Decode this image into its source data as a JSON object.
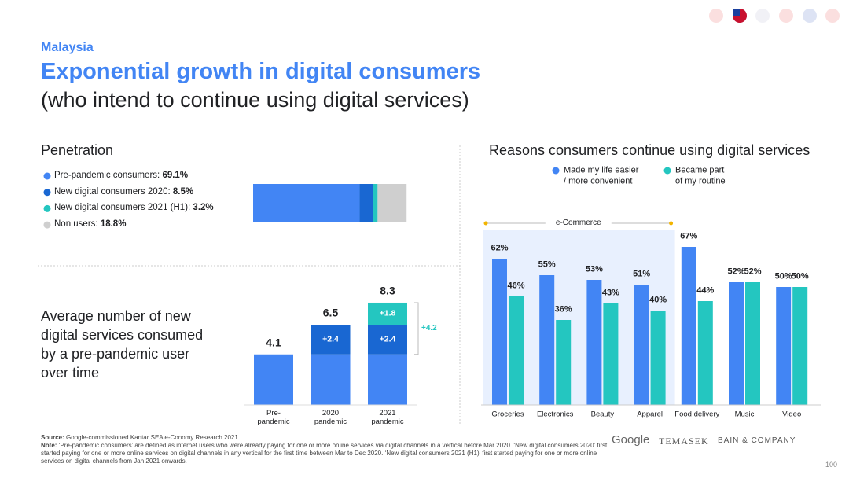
{
  "header": {
    "country": "Malaysia",
    "title": "Exponential growth in digital consumers",
    "subtitle": "(who intend to continue using digital services)"
  },
  "chart_data": [
    {
      "type": "stacked_hbar",
      "title": "Penetration",
      "xlim": [
        0,
        100
      ],
      "series": [
        {
          "name": "Pre-pandemic consumers:",
          "color": "#4285f4",
          "values": [
            69.1
          ],
          "value_labels": [
            "69.1%"
          ]
        },
        {
          "name": "New digital consumers 2020:",
          "color": "#1967d2",
          "values": [
            8.5
          ],
          "value_labels": [
            "8.5%"
          ]
        },
        {
          "name": "New digital consumers 2021 (H1):",
          "color": "#24c6c0",
          "values": [
            3.2
          ],
          "value_labels": [
            "3.2%"
          ]
        },
        {
          "name": "Non users:",
          "color": "#cfcfcf",
          "values": [
            18.8
          ],
          "value_labels": [
            "18.8%"
          ]
        }
      ]
    },
    {
      "type": "stacked_bar",
      "title": "Average number of new\ndigital services consumed\nby a pre-pandemic user\nover time",
      "categories": [
        "Pre-\npandemic",
        "2020\npandemic",
        "2021\npandemic"
      ],
      "ylim": [
        0,
        9
      ],
      "series": [
        {
          "color": "#4285f4",
          "values": [
            4.1,
            4.1,
            4.1
          ]
        },
        {
          "color": "#1967d2",
          "values": [
            null,
            2.4,
            2.4
          ],
          "value_labels": [
            null,
            "+2.4",
            "+2.4"
          ]
        },
        {
          "color": "#24c6c0",
          "values": [
            null,
            null,
            1.8
          ],
          "value_labels": [
            null,
            null,
            "+1.8"
          ]
        }
      ],
      "totals": [
        4.1,
        6.5,
        8.3
      ],
      "annotation": "+4.2"
    },
    {
      "type": "grouped_bar",
      "title": "Reasons consumers continue using digital services",
      "categories": [
        "Groceries",
        "Electronics",
        "Beauty",
        "Apparel",
        "Food delivery",
        "Music",
        "Video"
      ],
      "ylim": [
        0,
        70
      ],
      "highlight": {
        "label": "e-Commerce",
        "count": 4
      },
      "series": [
        {
          "name": "Made my life easier\n/ more convenient",
          "color": "#4285f4",
          "values": [
            62,
            55,
            53,
            51,
            67,
            52,
            50
          ],
          "value_labels": [
            "62%",
            "55%",
            "53%",
            "51%",
            "67%",
            "52%",
            "50%"
          ]
        },
        {
          "name": "Became part\nof my routine",
          "color": "#24c6c0",
          "values": [
            46,
            36,
            43,
            40,
            44,
            52,
            50
          ],
          "value_labels": [
            "46%",
            "36%",
            "43%",
            "40%",
            "44%",
            "52%",
            "50%"
          ]
        }
      ]
    }
  ],
  "footer": {
    "source_label": "Source:",
    "source": "Google-commissioned Kantar SEA e-Conomy Research 2021.",
    "note_label": "Note:",
    "note": "‘Pre-pandemic consumers’ are defined as internet users who were already paying for one or more online services via digital channels in a vertical before Mar 2020. ‘New digital consumers 2020’ first started paying for one or more online services on digital channels in any vertical for the first time between Mar to Dec 2020. ‘New digital consumers 2021 (H1)’ first started paying for one or more online services on digital channels from Jan 2021 onwards.",
    "logos": [
      "Google",
      "TEMASEK",
      "BAIN & COMPANY"
    ],
    "page": "100"
  }
}
